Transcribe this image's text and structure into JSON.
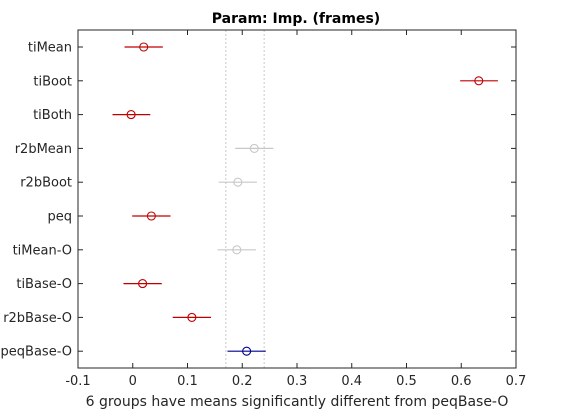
{
  "chart_data": {
    "type": "scatter",
    "title": "Param: Imp. (frames)",
    "xlabel": "6 groups have means significantly different from peqBase-O",
    "ylabel": "",
    "xlim": [
      -0.1,
      0.7
    ],
    "xticks": [
      "-0.1",
      "0",
      "0.1",
      "0.2",
      "0.3",
      "0.4",
      "0.5",
      "0.6",
      "0.7"
    ],
    "reference_interval": [
      0.17,
      0.24
    ],
    "grid": false,
    "groups": [
      {
        "label": "tiMean",
        "mean": 0.02,
        "lower": -0.015,
        "upper": 0.055,
        "status": "significant"
      },
      {
        "label": "tiBoot",
        "mean": 0.632,
        "lower": 0.598,
        "upper": 0.667,
        "status": "significant"
      },
      {
        "label": "tiBoth",
        "mean": -0.003,
        "lower": -0.037,
        "upper": 0.032,
        "status": "significant"
      },
      {
        "label": "r2bMean",
        "mean": 0.222,
        "lower": 0.187,
        "upper": 0.257,
        "status": "not-significant"
      },
      {
        "label": "r2bBoot",
        "mean": 0.192,
        "lower": 0.157,
        "upper": 0.227,
        "status": "not-significant"
      },
      {
        "label": "peq",
        "mean": 0.034,
        "lower": -0.001,
        "upper": 0.069,
        "status": "significant"
      },
      {
        "label": "tiMean-O",
        "mean": 0.19,
        "lower": 0.155,
        "upper": 0.225,
        "status": "not-significant"
      },
      {
        "label": "tiBase-O",
        "mean": 0.018,
        "lower": -0.017,
        "upper": 0.053,
        "status": "significant"
      },
      {
        "label": "r2bBase-O",
        "mean": 0.108,
        "lower": 0.073,
        "upper": 0.143,
        "status": "significant"
      },
      {
        "label": "peqBase-O",
        "mean": 0.208,
        "lower": 0.173,
        "upper": 0.243,
        "status": "reference"
      }
    ],
    "colors": {
      "significant": "#c00000",
      "not-significant": "#c8c8c8",
      "reference": "#00008b",
      "axes": "#262626",
      "reference_lines": "#c8c8c8"
    }
  }
}
